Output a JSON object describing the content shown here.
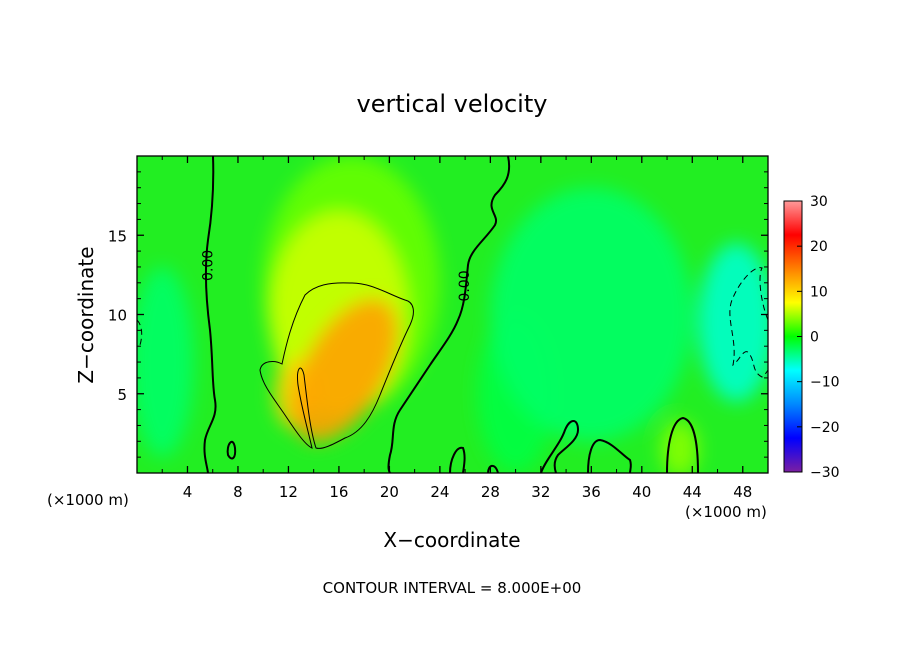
{
  "chart_data": {
    "type": "heatmap",
    "title": "vertical velocity",
    "xlabel": "X−coordinate",
    "ylabel": "Z−coordinate",
    "x_unit_left": "(×1000 m)",
    "x_unit_right": "(×1000 m)",
    "xlim": [
      0,
      50
    ],
    "ylim": [
      0,
      20
    ],
    "x_ticks": [
      4,
      8,
      12,
      16,
      20,
      24,
      28,
      32,
      36,
      40,
      44,
      48
    ],
    "y_ticks": [
      5,
      10,
      15
    ],
    "footer": "CONTOUR INTERVAL = 8.000E+00",
    "contour_labels": [
      {
        "text": "0.00",
        "x": 6.0,
        "z": 13.1,
        "rotate": -90
      },
      {
        "text": "0.00",
        "x": 26.3,
        "z": 11.8,
        "rotate": -90
      }
    ],
    "colorbar": {
      "min": -30,
      "max": 30,
      "ticks": [
        30,
        20,
        10,
        0,
        -10,
        -20,
        -30
      ],
      "tick_labels": [
        "30",
        "20",
        "10",
        "0",
        "−10",
        "−20",
        "−30"
      ],
      "colors": [
        "#7b1fa2",
        "#0000ff",
        "#0088ff",
        "#00ffff",
        "#00ff00",
        "#ffff00",
        "#ff8000",
        "#ff0000",
        "#ff9a9a"
      ]
    },
    "field_blobs": [
      {
        "x": 16.5,
        "z": 6.5,
        "rx": 3.2,
        "rz": 5.0,
        "w": 13,
        "rotate": 30
      },
      {
        "x": 12.5,
        "z": 5.0,
        "rx": 1.6,
        "rz": 2.2,
        "w": 10,
        "rotate": 0
      },
      {
        "x": 16.0,
        "z": 10.0,
        "rx": 5.5,
        "rz": 6.5,
        "w": 6,
        "rotate": 0
      },
      {
        "x": 17.0,
        "z": 12.0,
        "rx": 7.0,
        "rz": 8.0,
        "w": 3,
        "rotate": 0
      },
      {
        "x": 43.0,
        "z": 1.5,
        "rx": 1.5,
        "rz": 1.8,
        "w": 4,
        "rotate": 0
      },
      {
        "x": 47.5,
        "z": 9.5,
        "rx": 3.0,
        "rz": 5.0,
        "w": -6,
        "rotate": 0
      },
      {
        "x": 36.0,
        "z": 10.0,
        "rx": 8.0,
        "rz": 8.0,
        "w": -3,
        "rotate": 0
      },
      {
        "x": 2.0,
        "z": 7.0,
        "rx": 2.5,
        "rz": 6.0,
        "w": -3,
        "rotate": 0
      },
      {
        "x": 30.0,
        "z": 5.0,
        "rx": 3.0,
        "rz": 5.0,
        "w": -2,
        "rotate": 0
      }
    ]
  }
}
